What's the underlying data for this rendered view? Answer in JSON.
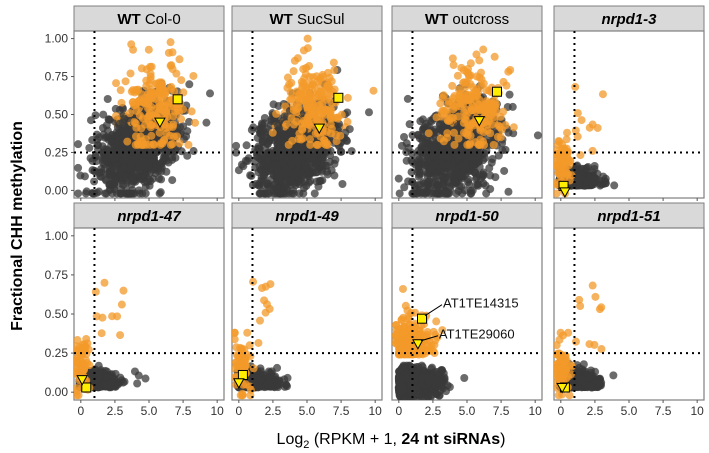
{
  "chart_data": {
    "type": "scatter",
    "xlabel_parts": [
      "Log",
      "2",
      " (RPKM + 1, ",
      "24 nt siRNAs",
      ")"
    ],
    "ylabel": "Fractional CHH methylation",
    "xlim": [
      -0.5,
      10.5
    ],
    "ylim": [
      -0.05,
      1.05
    ],
    "x_ticks": [
      0,
      2.5,
      5,
      7.5,
      10
    ],
    "x_tick_labels": [
      "0",
      "2.5",
      "5.0",
      "7.5",
      "10"
    ],
    "y_ticks": [
      0,
      0.25,
      0.5,
      0.75,
      1.0
    ],
    "y_tick_labels": [
      "0.00",
      "0.25",
      "0.50",
      "0.75",
      "1.00"
    ],
    "vline_x": 1,
    "hline_y": 0.25,
    "colors": {
      "background_points": "#3a3a3a",
      "highlight_points": "#f39a2a",
      "marker_fill": "#ffee00",
      "marker_stroke": "#000000"
    },
    "panels": [
      {
        "bold": "WT",
        "normal": "Col-0",
        "italic": false,
        "square": [
          7.1,
          0.6
        ],
        "triangle": [
          5.8,
          0.45
        ],
        "profile": "wt"
      },
      {
        "bold": "WT",
        "normal": "SucSul",
        "italic": false,
        "square": [
          7.3,
          0.61
        ],
        "triangle": [
          5.9,
          0.41
        ],
        "profile": "wt"
      },
      {
        "bold": "WT",
        "normal": "outcross",
        "italic": false,
        "square": [
          7.2,
          0.65
        ],
        "triangle": [
          5.9,
          0.46
        ],
        "profile": "wt"
      },
      {
        "bold": "nrpd1-3",
        "normal": "",
        "italic": true,
        "square": [
          0.2,
          0.03
        ],
        "triangle": [
          0.3,
          -0.01
        ],
        "profile": "mut"
      },
      {
        "bold": "nrpd1-47",
        "normal": "",
        "italic": true,
        "square": [
          0.4,
          0.03
        ],
        "triangle": [
          0.1,
          0.08
        ],
        "profile": "mut"
      },
      {
        "bold": "nrpd1-49",
        "normal": "",
        "italic": true,
        "square": [
          0.3,
          0.11
        ],
        "triangle": [
          0.0,
          0.06
        ],
        "profile": "mut"
      },
      {
        "bold": "nrpd1-50",
        "normal": "",
        "italic": true,
        "square": [
          1.7,
          0.47
        ],
        "triangle": [
          1.4,
          0.31
        ],
        "profile": "mut50"
      },
      {
        "bold": "nrpd1-51",
        "normal": "",
        "italic": true,
        "square": [
          0.3,
          0.03
        ],
        "triangle": [
          0.1,
          0.03
        ],
        "profile": "mut"
      }
    ],
    "annotations": [
      {
        "panel": 6,
        "text": "AT1TE14315",
        "x": 1.7,
        "y": 0.47
      },
      {
        "panel": 6,
        "text": "AT1TE29060",
        "x": 1.4,
        "y": 0.31
      }
    ]
  }
}
